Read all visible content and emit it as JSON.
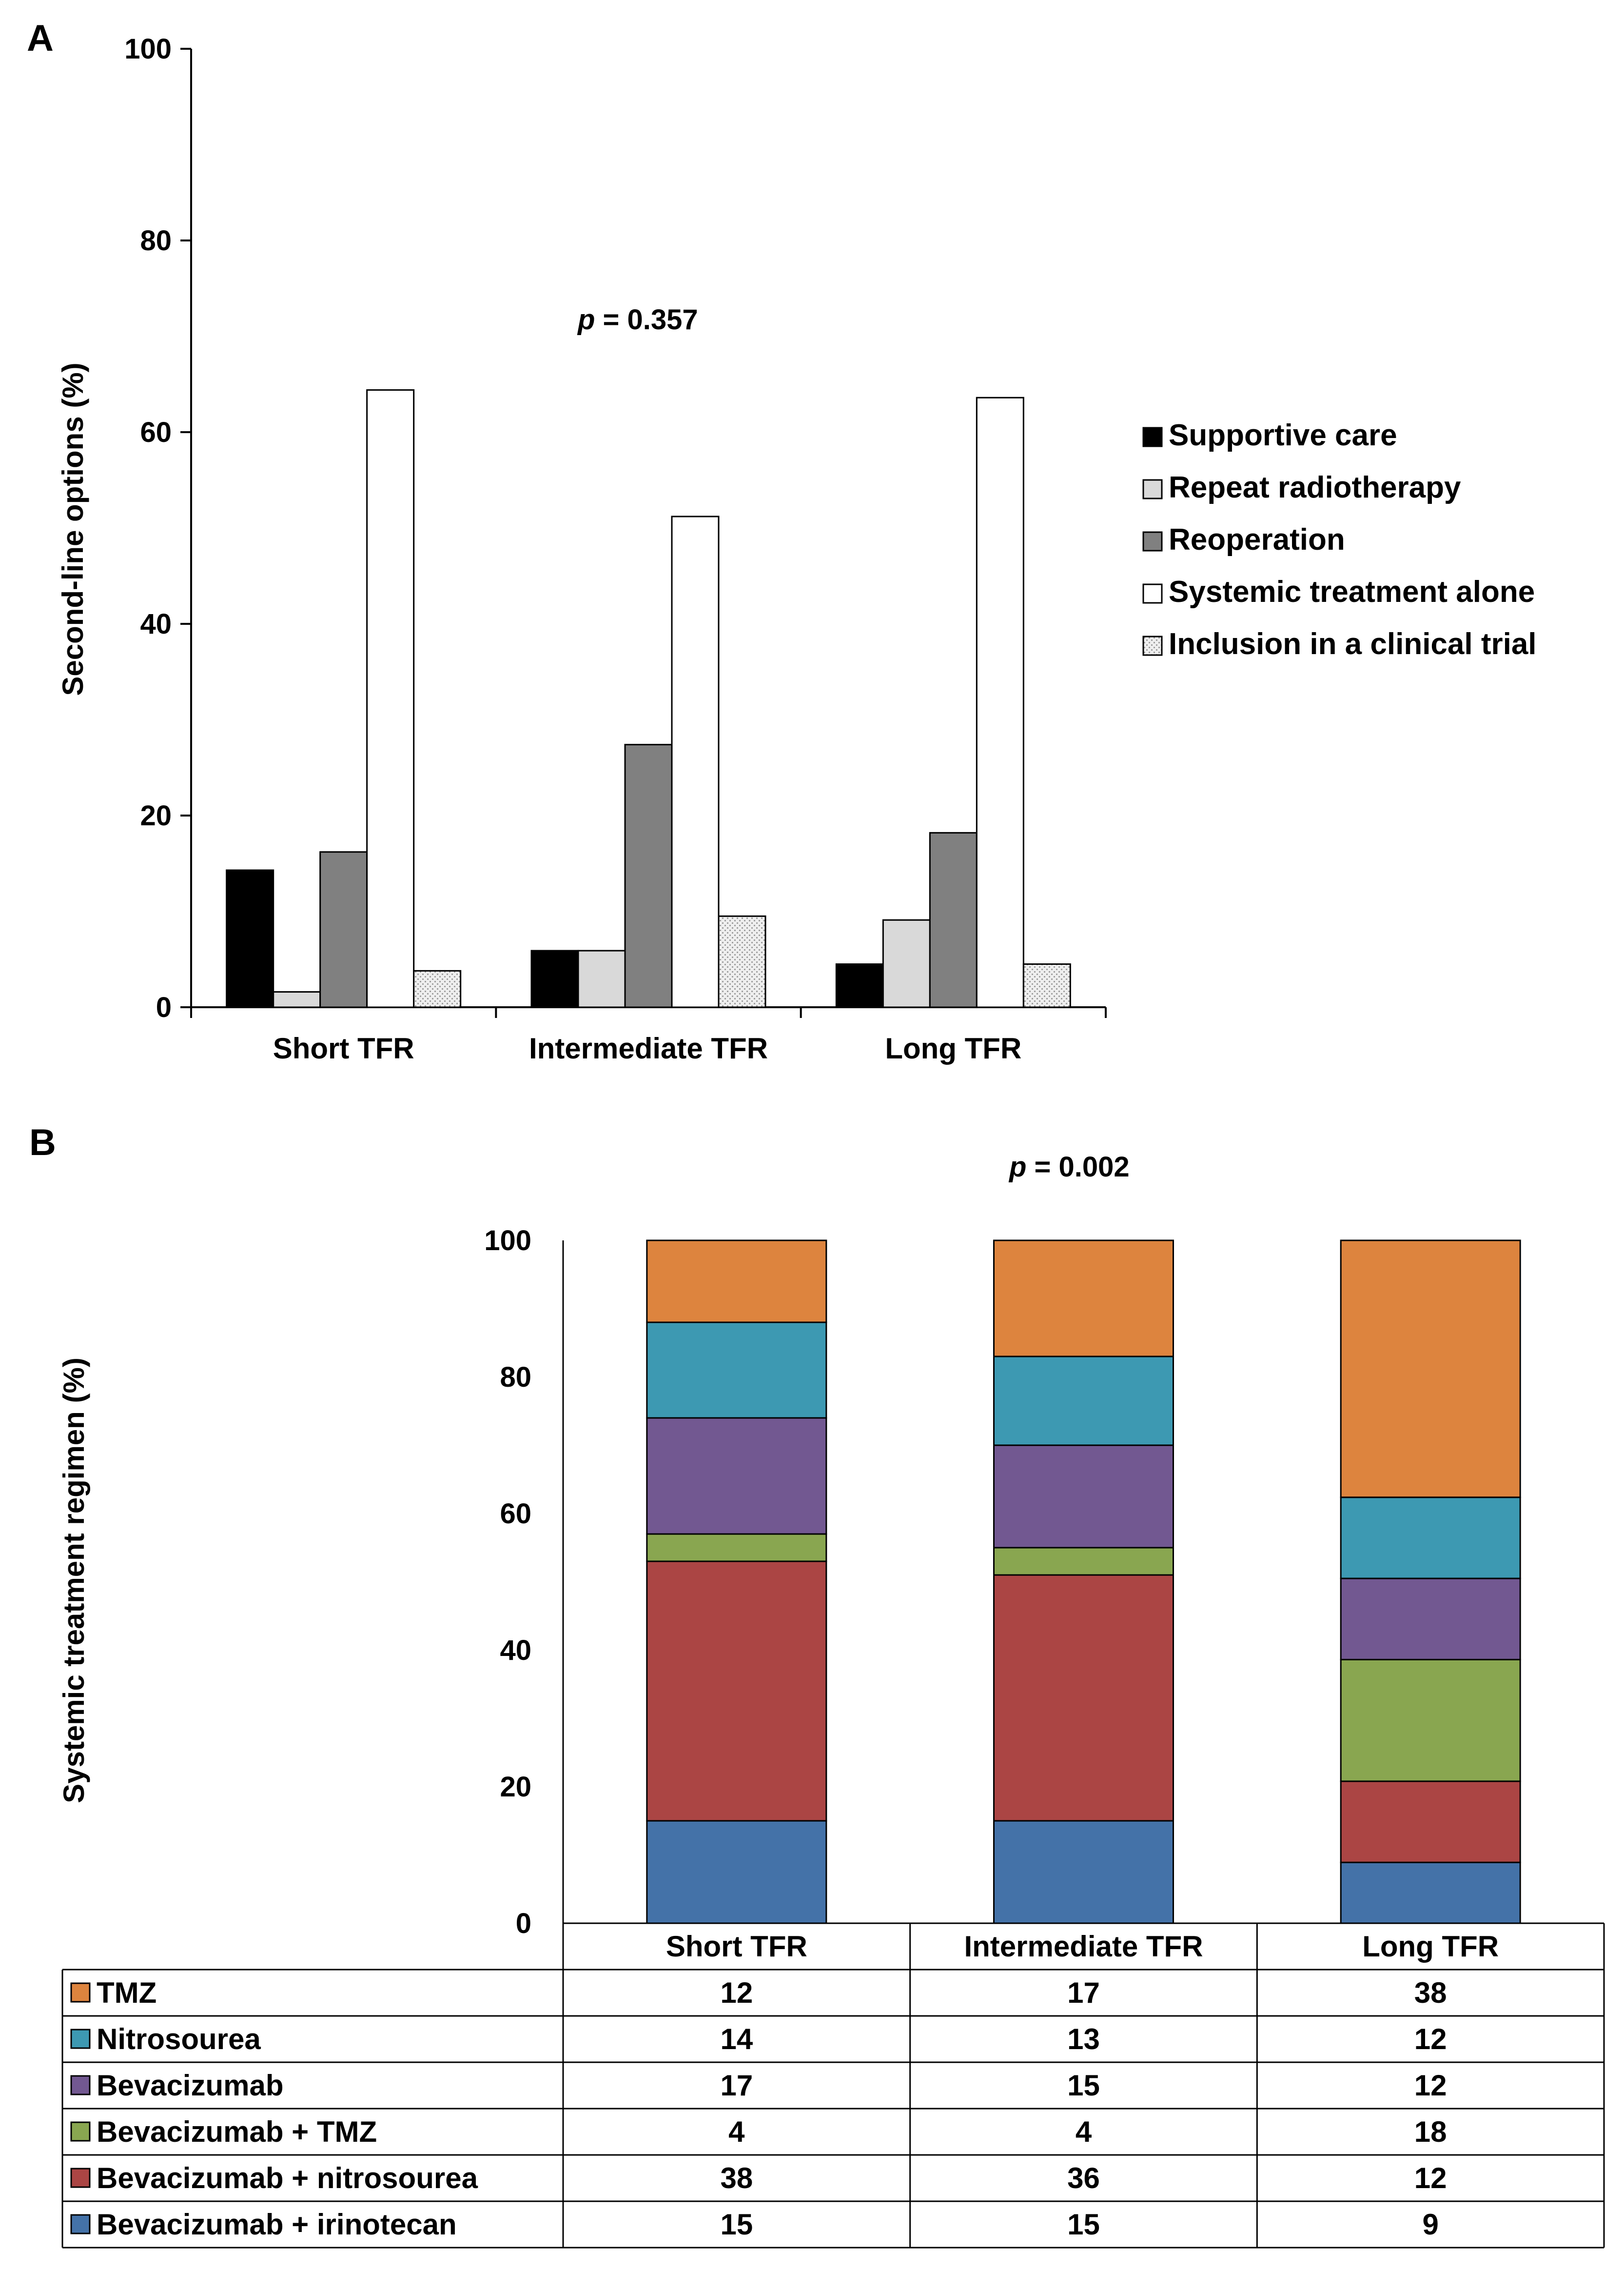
{
  "chart_data": [
    {
      "panel_label": "A",
      "type": "bar",
      "ylabel": "Second-line options (%)",
      "ylim": [
        0,
        100
      ],
      "yticks": [
        "0",
        "20",
        "40",
        "60",
        "80",
        "100"
      ],
      "annotation": {
        "italic": "p",
        "text": " = 0.357"
      },
      "categories": [
        "Short TFR",
        "Intermediate TFR",
        "Long TFR"
      ],
      "series": [
        {
          "name": "Supportive care",
          "color": "#000000",
          "values": [
            14.3,
            5.9,
            4.5
          ]
        },
        {
          "name": "Repeat radiotherapy",
          "color": "#d9d9d9",
          "values": [
            1.6,
            5.9,
            9.1
          ]
        },
        {
          "name": "Reoperation",
          "color": "#808080",
          "values": [
            16.2,
            27.4,
            18.2
          ]
        },
        {
          "name": "Systemic treatment alone",
          "color": "#ffffff",
          "values": [
            64.4,
            51.2,
            63.6
          ]
        },
        {
          "name": "Inclusion in a clinical trial",
          "color": "dots",
          "values": [
            3.8,
            9.5,
            4.5
          ]
        }
      ]
    },
    {
      "panel_label": "B",
      "type": "bar",
      "stacked": true,
      "ylabel": "Systemic treatment regimen (%)",
      "ylim": [
        0,
        100
      ],
      "yticks": [
        "0",
        "20",
        "40",
        "60",
        "80",
        "100"
      ],
      "annotation": {
        "italic": "p",
        "text": " = 0.002"
      },
      "categories": [
        "Short TFR",
        "Intermediate TFR",
        "Long TFR"
      ],
      "series": [
        {
          "name": "TMZ",
          "color": "#dd843e",
          "values": [
            12,
            17,
            38
          ]
        },
        {
          "name": "Nitrosourea",
          "color": "#3d99b2",
          "values": [
            14,
            13,
            12
          ]
        },
        {
          "name": "Bevacizumab",
          "color": "#725891",
          "values": [
            17,
            15,
            12
          ]
        },
        {
          "name": "Bevacizumab + TMZ",
          "color": "#89a650",
          "values": [
            4,
            4,
            18
          ]
        },
        {
          "name": "Bevacizumab + nitrosourea",
          "color": "#ab4544",
          "values": [
            38,
            36,
            12
          ]
        },
        {
          "name": "Bevacizumab + irinotecan",
          "color": "#4472a8",
          "values": [
            15,
            15,
            9
          ]
        }
      ]
    }
  ]
}
